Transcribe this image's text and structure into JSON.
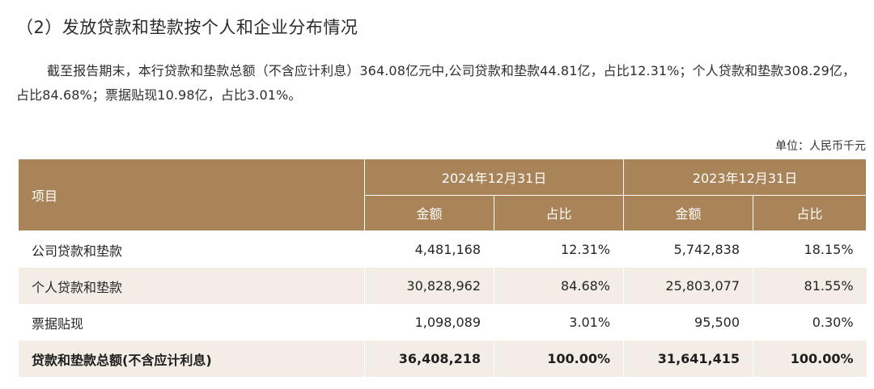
{
  "heading": "（2）发放贷款和垫款按个人和企业分布情况",
  "paragraph": "截至报告期末，本行贷款和垫款总额（不含应计利息）364.08亿元中,公司贷款和垫款44.81亿，占比12.31%；个人贷款和垫款308.29亿，占比84.68%；票据贴现10.98亿，占比3.01%。",
  "unit": "单位：人民币千元",
  "table": {
    "item_header": "项目",
    "periods": [
      "2024年12月31日",
      "2023年12月31日"
    ],
    "sub_headers": [
      "金额",
      "占比",
      "金额",
      "占比"
    ],
    "rows": [
      {
        "label": "公司贷款和垫款",
        "cells": [
          "4,481,168",
          "12.31%",
          "5,742,838",
          "18.15%"
        ]
      },
      {
        "label": "个人贷款和垫款",
        "cells": [
          "30,828,962",
          "84.68%",
          "25,803,077",
          "81.55%"
        ]
      },
      {
        "label": "票据贴现",
        "cells": [
          "1,098,089",
          "3.01%",
          "95,500",
          "0.30%"
        ]
      }
    ],
    "total": {
      "label": "贷款和垫款总额(不含应计利息)",
      "cells": [
        "36,408,218",
        "100.00%",
        "31,641,415",
        "100.00%"
      ]
    }
  }
}
